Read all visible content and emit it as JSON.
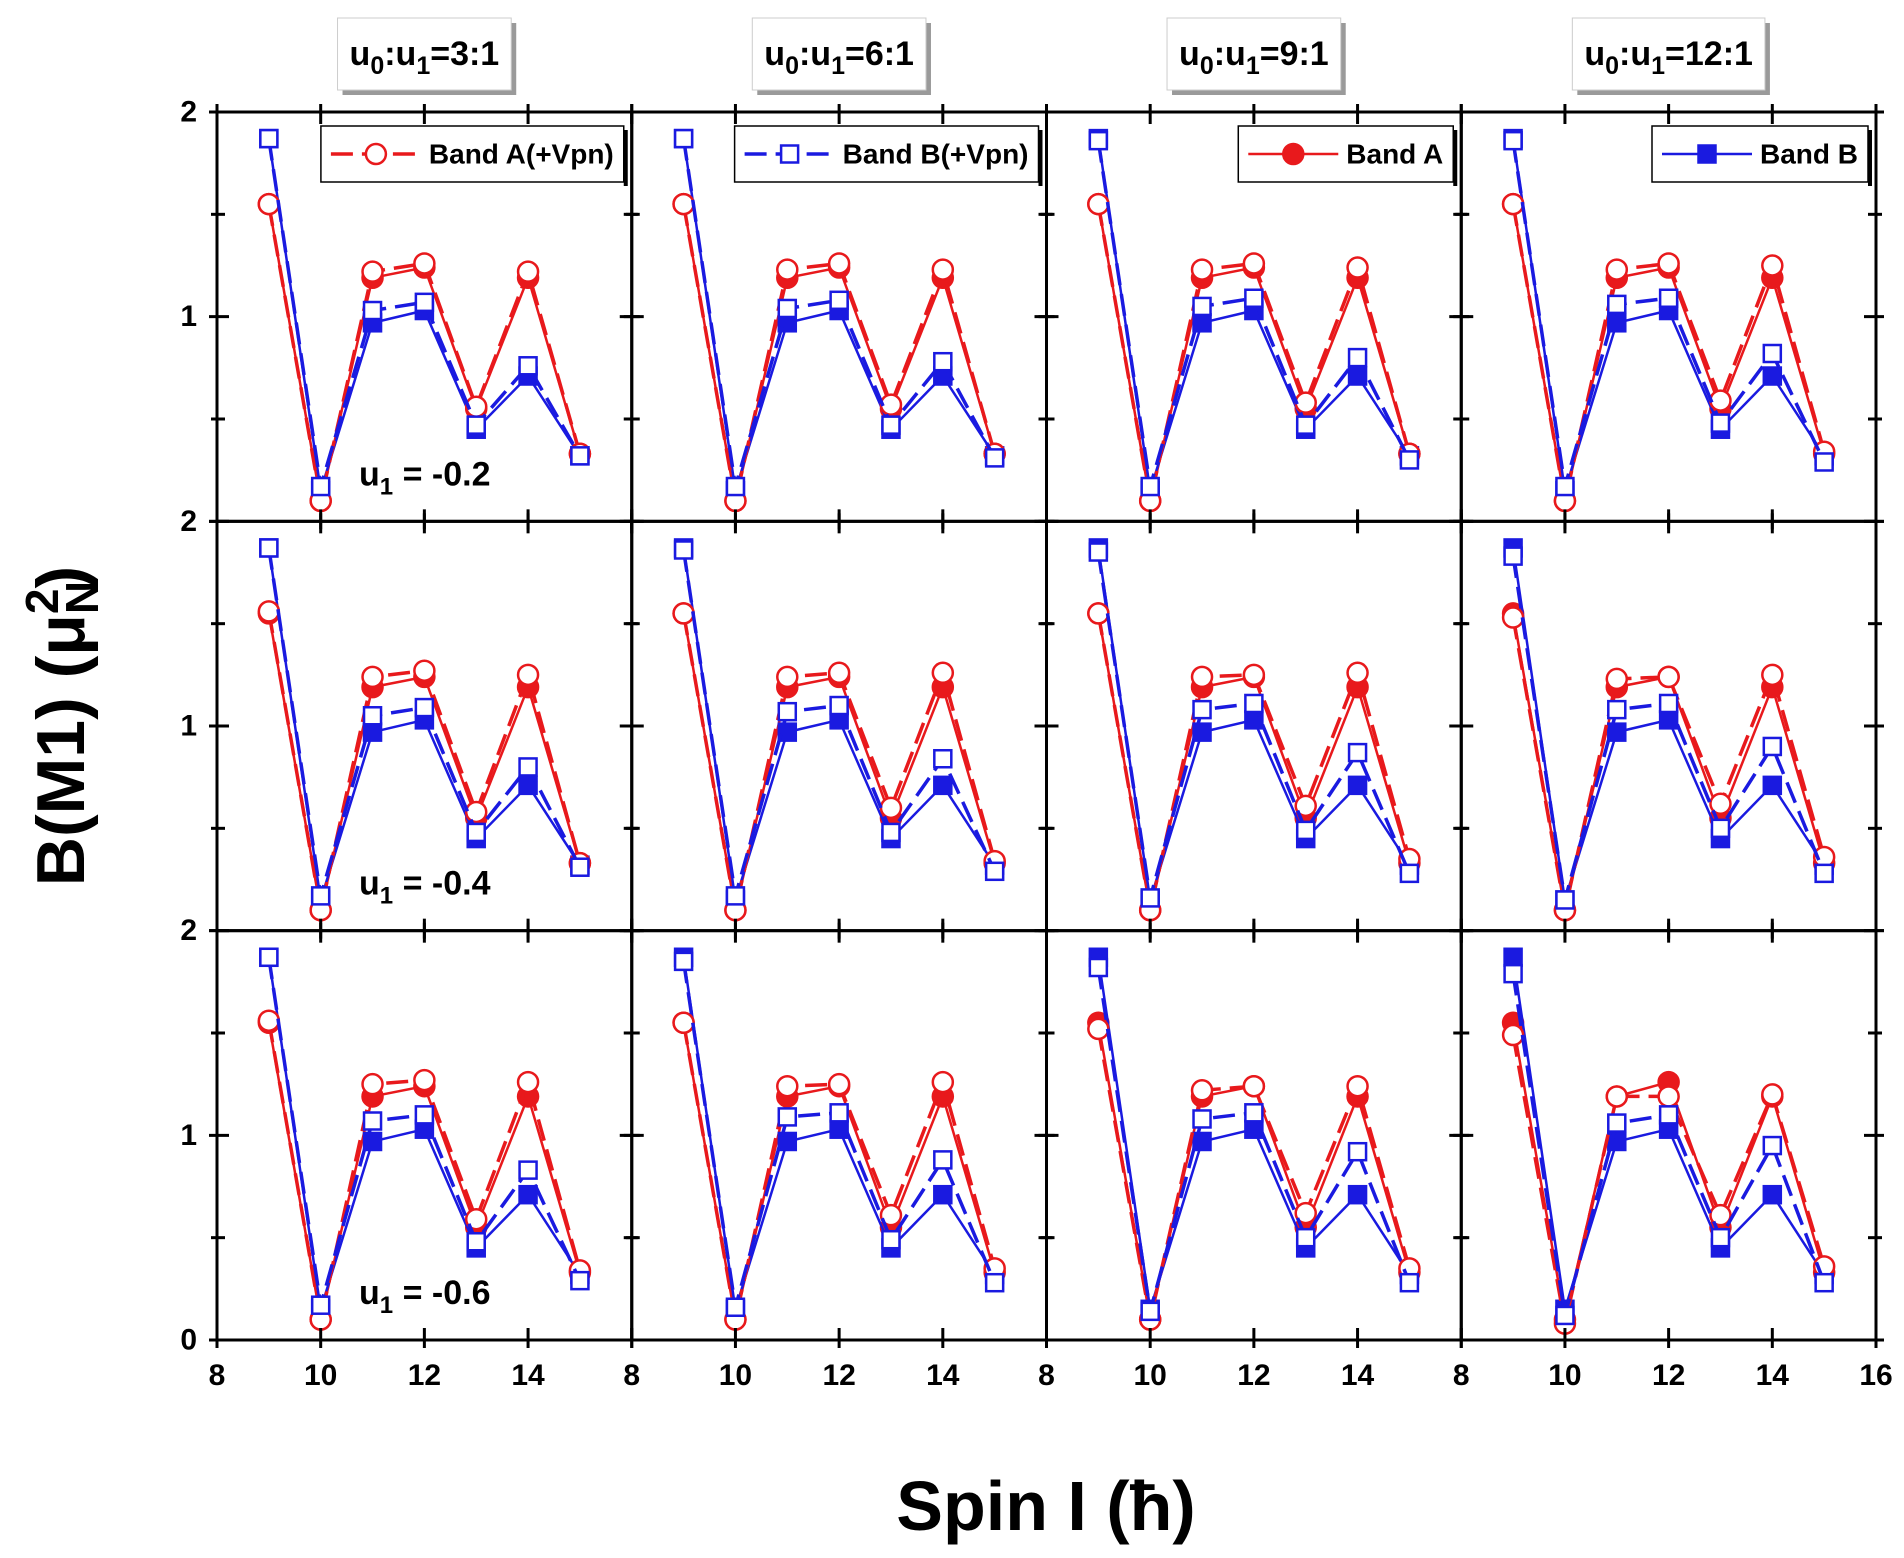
{
  "chart_data": {
    "type": "line",
    "x_label": "Spin I (ħ)",
    "y_label": {
      "text": "B(M1) (μ",
      "sub": "N",
      "sup": "2",
      "close": ")"
    },
    "column_titles": [
      [
        "u",
        "0",
        ":u",
        "1",
        "=3:1"
      ],
      [
        "u",
        "0",
        ":u",
        "1",
        "=6:1"
      ],
      [
        "u",
        "0",
        ":u",
        "1",
        "=9:1"
      ],
      [
        "u",
        "0",
        ":u",
        "1",
        "=12:1"
      ]
    ],
    "row_labels": [
      [
        "u",
        "1",
        " = -0.2"
      ],
      [
        "u",
        "1",
        " = -0.4"
      ],
      [
        "u",
        "1",
        " = -0.6"
      ]
    ],
    "x": [
      9,
      10,
      11,
      12,
      13,
      14,
      15
    ],
    "xlim": [
      8,
      16
    ],
    "xticks": [
      8,
      10,
      12,
      14,
      16
    ],
    "ylim": [
      0,
      2
    ],
    "yticks": [
      0,
      1,
      2
    ],
    "y_minor_ticks": [
      0.5,
      1.5
    ],
    "series": [
      {
        "name": "Band A(+Vpn)",
        "color": "#e8191c",
        "marker": "open-circle",
        "dash": true
      },
      {
        "name": "Band B(+Vpn)",
        "color": "#1a1ae0",
        "marker": "open-square",
        "dash": true
      },
      {
        "name": "Band A",
        "color": "#e8191c",
        "marker": "circle",
        "dash": false
      },
      {
        "name": "Band B",
        "color": "#1a1ae0",
        "marker": "square",
        "dash": false
      }
    ],
    "panels": [
      {
        "series": [
          {
            "values": [
              1.55,
              0.1,
              1.22,
              1.26,
              0.56,
              1.22,
              0.33
            ]
          },
          {
            "values": [
              1.87,
              0.17,
              1.03,
              1.07,
              0.47,
              0.76,
              0.32
            ]
          },
          {
            "values": [
              1.55,
              0.1,
              1.19,
              1.24,
              0.55,
              1.19,
              0.33
            ]
          },
          {
            "values": [
              1.87,
              0.15,
              0.97,
              1.03,
              0.45,
              0.71,
              0.32
            ]
          }
        ]
      },
      {
        "series": [
          {
            "values": [
              1.55,
              0.1,
              1.23,
              1.26,
              0.57,
              1.23,
              0.33
            ]
          },
          {
            "values": [
              1.87,
              0.17,
              1.04,
              1.08,
              0.47,
              0.78,
              0.31
            ]
          },
          {
            "values": [
              1.55,
              0.1,
              1.19,
              1.24,
              0.55,
              1.19,
              0.33
            ]
          },
          {
            "values": [
              1.87,
              0.15,
              0.97,
              1.03,
              0.45,
              0.71,
              0.32
            ]
          }
        ]
      },
      {
        "series": [
          {
            "values": [
              1.55,
              0.1,
              1.23,
              1.26,
              0.58,
              1.24,
              0.33
            ]
          },
          {
            "values": [
              1.86,
              0.17,
              1.05,
              1.09,
              0.47,
              0.8,
              0.3
            ]
          },
          {
            "values": [
              1.55,
              0.1,
              1.19,
              1.24,
              0.55,
              1.19,
              0.33
            ]
          },
          {
            "values": [
              1.87,
              0.15,
              0.97,
              1.03,
              0.45,
              0.71,
              0.32
            ]
          }
        ]
      },
      {
        "series": [
          {
            "values": [
              1.55,
              0.1,
              1.23,
              1.26,
              0.59,
              1.25,
              0.34
            ]
          },
          {
            "values": [
              1.86,
              0.17,
              1.06,
              1.09,
              0.48,
              0.82,
              0.29
            ]
          },
          {
            "values": [
              1.55,
              0.1,
              1.19,
              1.24,
              0.55,
              1.19,
              0.33
            ]
          },
          {
            "values": [
              1.87,
              0.15,
              0.97,
              1.03,
              0.45,
              0.71,
              0.32
            ]
          }
        ]
      },
      {
        "series": [
          {
            "values": [
              1.56,
              0.1,
              1.24,
              1.27,
              0.58,
              1.25,
              0.33
            ]
          },
          {
            "values": [
              1.87,
              0.17,
              1.05,
              1.09,
              0.48,
              0.8,
              0.31
            ]
          },
          {
            "values": [
              1.55,
              0.1,
              1.19,
              1.24,
              0.55,
              1.19,
              0.33
            ]
          },
          {
            "values": [
              1.87,
              0.15,
              0.97,
              1.03,
              0.45,
              0.71,
              0.32
            ]
          }
        ]
      },
      {
        "series": [
          {
            "values": [
              1.55,
              0.1,
              1.24,
              1.26,
              0.6,
              1.26,
              0.34
            ]
          },
          {
            "values": [
              1.86,
              0.17,
              1.07,
              1.1,
              0.48,
              0.84,
              0.29
            ]
          },
          {
            "values": [
              1.55,
              0.1,
              1.19,
              1.24,
              0.55,
              1.19,
              0.33
            ]
          },
          {
            "values": [
              1.87,
              0.15,
              0.97,
              1.03,
              0.45,
              0.71,
              0.32
            ]
          }
        ]
      },
      {
        "series": [
          {
            "values": [
              1.55,
              0.1,
              1.24,
              1.25,
              0.61,
              1.26,
              0.35
            ]
          },
          {
            "values": [
              1.85,
              0.16,
              1.08,
              1.11,
              0.49,
              0.87,
              0.28
            ]
          },
          {
            "values": [
              1.55,
              0.1,
              1.19,
              1.24,
              0.55,
              1.19,
              0.33
            ]
          },
          {
            "values": [
              1.87,
              0.15,
              0.97,
              1.03,
              0.45,
              0.71,
              0.32
            ]
          }
        ]
      },
      {
        "series": [
          {
            "values": [
              1.53,
              0.1,
              1.23,
              1.24,
              0.62,
              1.25,
              0.36
            ]
          },
          {
            "values": [
              1.83,
              0.15,
              1.08,
              1.11,
              0.5,
              0.9,
              0.28
            ]
          },
          {
            "values": [
              1.55,
              0.1,
              1.19,
              1.24,
              0.55,
              1.19,
              0.33
            ]
          },
          {
            "values": [
              1.87,
              0.15,
              0.97,
              1.03,
              0.45,
              0.71,
              0.32
            ]
          }
        ]
      },
      {
        "series": [
          {
            "values": [
              1.56,
              0.1,
              1.25,
              1.27,
              0.59,
              1.26,
              0.34
            ]
          },
          {
            "values": [
              1.87,
              0.17,
              1.07,
              1.1,
              0.48,
              0.83,
              0.29
            ]
          },
          {
            "values": [
              1.55,
              0.1,
              1.19,
              1.24,
              0.55,
              1.19,
              0.33
            ]
          },
          {
            "values": [
              1.87,
              0.15,
              0.97,
              1.03,
              0.45,
              0.71,
              0.32
            ]
          }
        ]
      },
      {
        "series": [
          {
            "values": [
              1.55,
              0.1,
              1.24,
              1.25,
              0.61,
              1.26,
              0.35
            ]
          },
          {
            "values": [
              1.85,
              0.16,
              1.09,
              1.11,
              0.49,
              0.88,
              0.28
            ]
          },
          {
            "values": [
              1.55,
              0.1,
              1.19,
              1.24,
              0.55,
              1.19,
              0.33
            ]
          },
          {
            "values": [
              1.87,
              0.15,
              0.97,
              1.03,
              0.45,
              0.71,
              0.32
            ]
          }
        ]
      },
      {
        "series": [
          {
            "values": [
              1.52,
              0.1,
              1.22,
              1.24,
              0.62,
              1.24,
              0.35
            ]
          },
          {
            "values": [
              1.82,
              0.14,
              1.08,
              1.11,
              0.5,
              0.92,
              0.28
            ]
          },
          {
            "values": [
              1.55,
              0.1,
              1.19,
              1.24,
              0.55,
              1.19,
              0.33
            ]
          },
          {
            "values": [
              1.87,
              0.15,
              0.97,
              1.03,
              0.45,
              0.71,
              0.32
            ]
          }
        ]
      },
      {
        "series": [
          {
            "values": [
              1.49,
              0.08,
              1.19,
              1.19,
              0.61,
              1.2,
              0.36
            ]
          },
          {
            "values": [
              1.79,
              0.12,
              1.06,
              1.1,
              0.5,
              0.95,
              0.28
            ]
          },
          {
            "values": [
              1.55,
              0.1,
              1.19,
              1.26,
              0.55,
              1.19,
              0.33
            ]
          },
          {
            "values": [
              1.87,
              0.15,
              0.97,
              1.03,
              0.45,
              0.71,
              0.32
            ]
          }
        ]
      }
    ]
  }
}
